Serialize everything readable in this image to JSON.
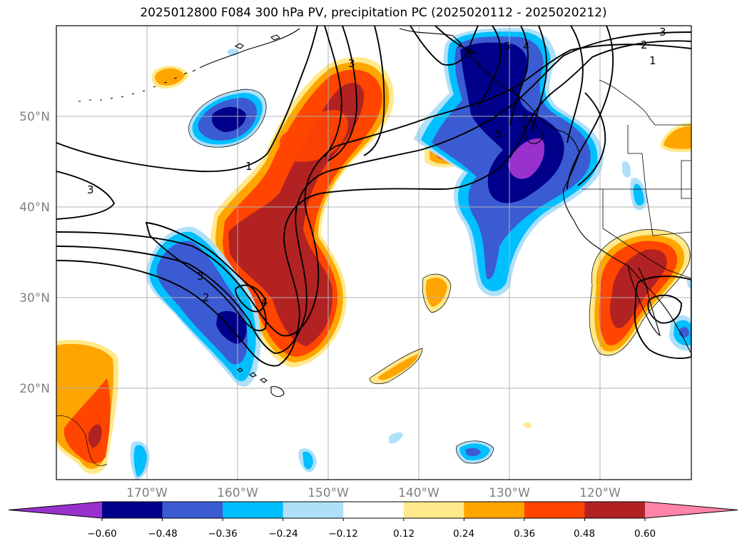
{
  "title": "2025012800 F084 300 hPa PV, precipitation PC (2025020112 - 2025020212)",
  "map": {
    "lon_range": [
      180,
      110
    ],
    "lat_range": [
      10,
      60
    ],
    "lat_labels": [
      "50°N",
      "40°N",
      "30°N",
      "20°N"
    ],
    "lon_labels": [
      "170°W",
      "160°W",
      "150°W",
      "140°W",
      "130°W",
      "120°W"
    ],
    "gridlines": true
  },
  "shading_levels": [
    {
      "min": null,
      "max": -0.6,
      "color": "#9932cc"
    },
    {
      "min": -0.6,
      "max": -0.48,
      "color": "#00008b"
    },
    {
      "min": -0.48,
      "max": -0.36,
      "color": "#3b5bd3"
    },
    {
      "min": -0.36,
      "max": -0.24,
      "color": "#00bfff"
    },
    {
      "min": -0.24,
      "max": -0.12,
      "color": "#afe0fa"
    },
    {
      "min": -0.12,
      "max": 0.12,
      "color": "#ffffff"
    },
    {
      "min": 0.12,
      "max": 0.24,
      "color": "#ffe98a"
    },
    {
      "min": 0.24,
      "max": 0.36,
      "color": "#ffa500"
    },
    {
      "min": 0.36,
      "max": 0.48,
      "color": "#ff4500"
    },
    {
      "min": 0.48,
      "max": 0.6,
      "color": "#b22222"
    },
    {
      "min": 0.6,
      "max": null,
      "color": "#ff85a8"
    }
  ],
  "colorbar": {
    "tick_labels": [
      "−0.60",
      "−0.48",
      "−0.36",
      "−0.24",
      "−0.12",
      "0.12",
      "0.24",
      "0.36",
      "0.48",
      "0.60"
    ]
  },
  "pv_contour_labels": [
    "3",
    "5",
    "4",
    "3",
    "2",
    "1",
    "5",
    "1",
    "3",
    "3",
    "2",
    "4"
  ]
}
